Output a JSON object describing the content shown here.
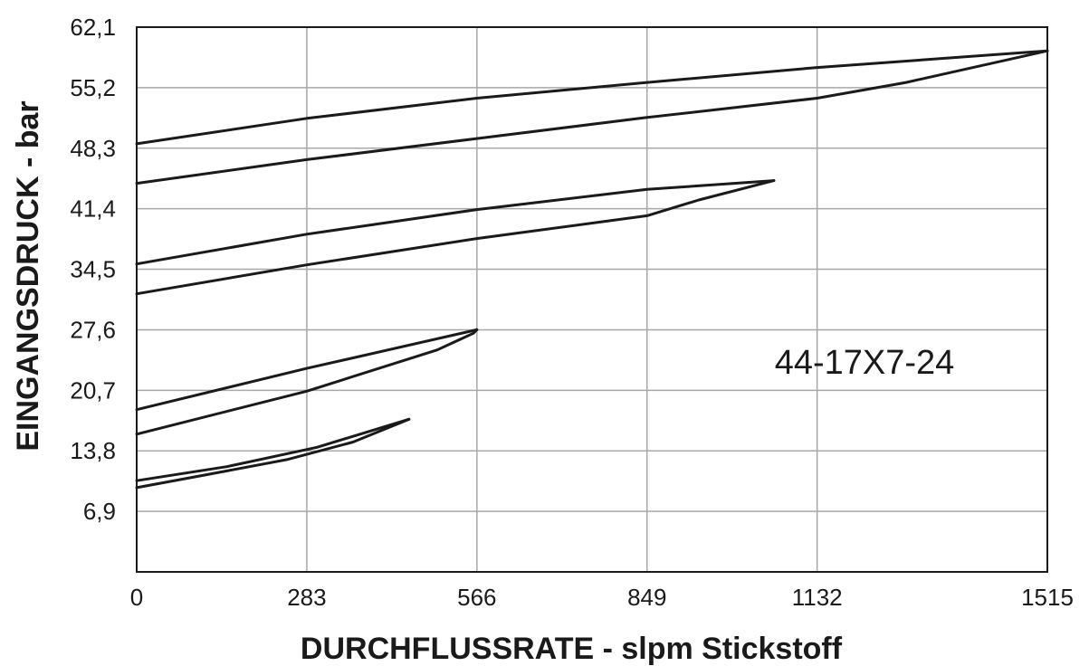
{
  "chart_data": {
    "type": "line",
    "xlabel": "DURCHFLUSSRATE - slpm Stickstoff",
    "ylabel": "EINGANGSDRUCK - bar",
    "xlim": [
      0,
      1515
    ],
    "ylim": [
      0,
      62.1
    ],
    "x_ticks": [
      "0",
      "283",
      "566",
      "849",
      "1132",
      "1515"
    ],
    "x_tick_values": [
      0,
      283,
      566,
      849,
      1132,
      1515
    ],
    "y_ticks": [
      "6,9",
      "13,8",
      "20,7",
      "27,6",
      "34,5",
      "41,4",
      "48,3",
      "55,2",
      "62,1"
    ],
    "y_tick_values": [
      6.9,
      13.8,
      20.7,
      27.6,
      34.5,
      41.4,
      48.3,
      55.2,
      62.1
    ],
    "grid": true,
    "annotation": "44-17X7-24",
    "series": [
      {
        "points": [
          [
            0,
            9.6
          ],
          [
            110,
            11.0
          ],
          [
            250,
            12.8
          ],
          [
            360,
            14.8
          ],
          [
            453,
            17.4
          ]
        ]
      },
      {
        "points": [
          [
            0,
            10.4
          ],
          [
            150,
            12.0
          ],
          [
            300,
            14.2
          ],
          [
            453,
            17.4
          ]
        ]
      },
      {
        "points": [
          [
            0,
            15.7
          ],
          [
            283,
            20.6
          ],
          [
            500,
            25.3
          ],
          [
            560,
            27.2
          ],
          [
            566,
            27.6
          ]
        ]
      },
      {
        "points": [
          [
            0,
            18.5
          ],
          [
            283,
            23.2
          ],
          [
            566,
            27.6
          ]
        ]
      },
      {
        "points": [
          [
            0,
            31.7
          ],
          [
            283,
            35.0
          ],
          [
            566,
            38.0
          ],
          [
            849,
            40.6
          ],
          [
            935,
            42.4
          ],
          [
            1060,
            44.6
          ]
        ]
      },
      {
        "points": [
          [
            0,
            35.1
          ],
          [
            283,
            38.5
          ],
          [
            566,
            41.3
          ],
          [
            849,
            43.6
          ],
          [
            1060,
            44.6
          ]
        ]
      },
      {
        "points": [
          [
            0,
            44.3
          ],
          [
            283,
            47.0
          ],
          [
            566,
            49.4
          ],
          [
            849,
            51.8
          ],
          [
            1132,
            54.0
          ],
          [
            1280,
            55.8
          ],
          [
            1515,
            59.4
          ]
        ]
      },
      {
        "points": [
          [
            0,
            48.8
          ],
          [
            283,
            51.7
          ],
          [
            566,
            54.0
          ],
          [
            849,
            55.8
          ],
          [
            1132,
            57.5
          ],
          [
            1515,
            59.4
          ]
        ]
      }
    ]
  }
}
